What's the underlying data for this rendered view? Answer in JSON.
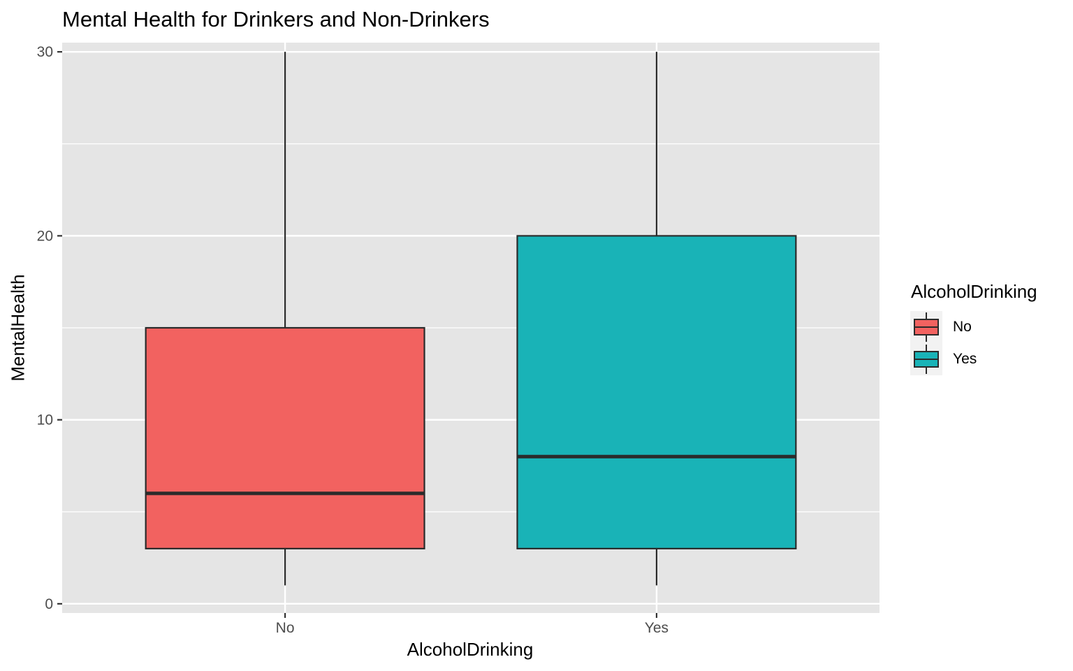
{
  "chart_data": {
    "type": "boxplot",
    "title": "Mental Health for Drinkers and Non-Drinkers",
    "xlabel": "AlcoholDrinking",
    "ylabel": "MentalHealth",
    "categories": [
      "No",
      "Yes"
    ],
    "ylim": [
      -0.5,
      30.5
    ],
    "yticks": [
      0,
      10,
      20,
      30
    ],
    "grid": true,
    "series": [
      {
        "name": "No",
        "min": 1,
        "q1": 3,
        "median": 6,
        "q3": 15,
        "max": 30,
        "color": "#F26260"
      },
      {
        "name": "Yes",
        "min": 1,
        "q1": 3,
        "median": 8,
        "q3": 20,
        "max": 30,
        "color": "#19B3B7"
      }
    ],
    "legend": {
      "title": "AlcoholDrinking",
      "position": "right",
      "entries": [
        "No",
        "Yes"
      ]
    }
  },
  "colors": {
    "panel_background": "#E5E5E5",
    "grid_line": "#FFFFFF",
    "box_stroke": "#2B2B2B",
    "axis_text": "#4D4D4D",
    "legend_key_background": "#F2F2F2"
  }
}
